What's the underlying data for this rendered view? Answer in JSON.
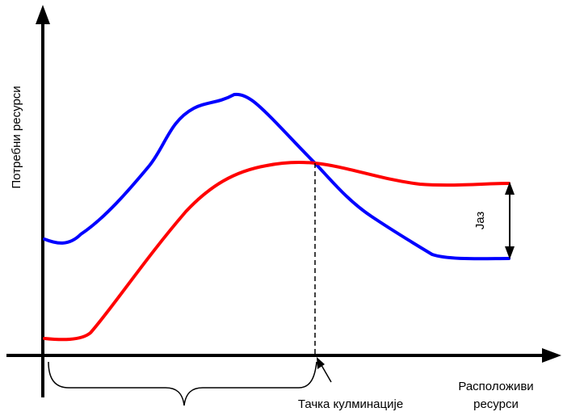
{
  "diagram": {
    "y_axis_label": "Потребни ресурси",
    "x_axis_label_line1": "Расположиви",
    "x_axis_label_line2": "ресурси",
    "gap_label": "Јаз",
    "culmination_label": "Тачка кулминације"
  },
  "colors": {
    "required_curve": "#0000ff",
    "available_curve": "#ff0000",
    "axes": "#000000"
  }
}
